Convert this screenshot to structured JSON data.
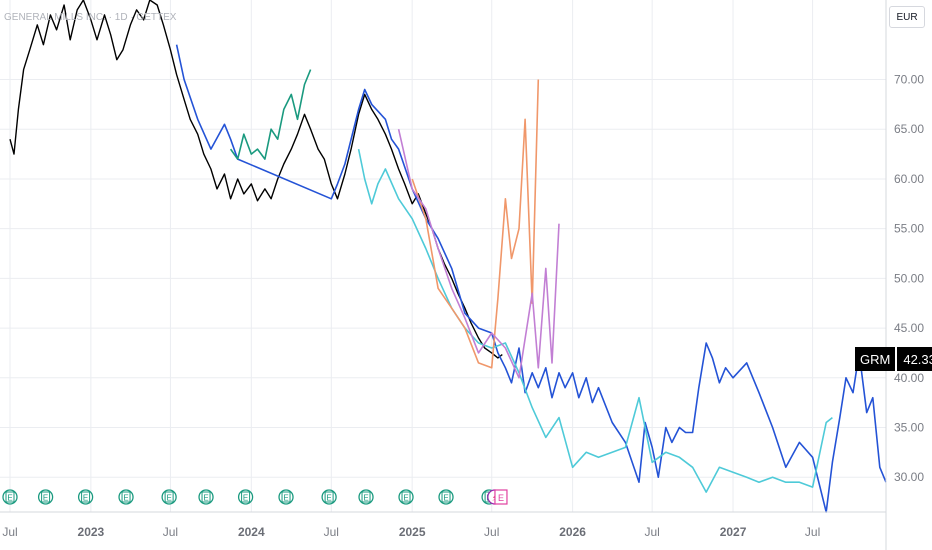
{
  "header": {
    "title": "GENERAL MILLS INC. · 1D · GETTEX"
  },
  "currency_button": {
    "label": "EUR"
  },
  "last_price": {
    "symbol": "GRM",
    "value": "42.33"
  },
  "colors": {
    "price": "#000000",
    "forecast_blue": "#2453d6",
    "forecast_cyan": "#4ecad8",
    "forecast_green": "#1a9a7f",
    "forecast_orange": "#f0976a",
    "forecast_purple": "#c27fd4",
    "grid": "#ebedf1",
    "earnings": "#1a9a7f",
    "split_dividend": "#9c27b0",
    "earnings_upcoming": "#e040a0"
  },
  "chart_data": {
    "type": "line",
    "title": "GENERAL MILLS INC. · 1D · GETTEX",
    "ylabel": "",
    "xlabel": "",
    "y_ticks": [
      30.0,
      35.0,
      40.0,
      45.0,
      50.0,
      55.0,
      60.0,
      65.0,
      70.0
    ],
    "y_tick_labels": [
      "30.00",
      "35.00",
      "40.00",
      "45.00",
      "50.00",
      "55.00",
      "60.00",
      "65.00",
      "70.00"
    ],
    "ylim": [
      26.5,
      78
    ],
    "xlim": [
      "2022-07-01",
      "2027-12-15"
    ],
    "x_ticks": [
      {
        "date": "2022-07-01",
        "label": "Jul",
        "year": false
      },
      {
        "date": "2023-01-01",
        "label": "2023",
        "year": true
      },
      {
        "date": "2023-07-01",
        "label": "Jul",
        "year": false
      },
      {
        "date": "2024-01-01",
        "label": "2024",
        "year": true
      },
      {
        "date": "2024-07-01",
        "label": "Jul",
        "year": false
      },
      {
        "date": "2025-01-01",
        "label": "2025",
        "year": true
      },
      {
        "date": "2025-07-01",
        "label": "Jul",
        "year": false
      },
      {
        "date": "2026-01-01",
        "label": "2026",
        "year": true
      },
      {
        "date": "2026-07-01",
        "label": "Jul",
        "year": false
      },
      {
        "date": "2027-01-01",
        "label": "2027",
        "year": true
      },
      {
        "date": "2027-07-01",
        "label": "Jul",
        "year": false
      }
    ],
    "grid": true,
    "series": [
      {
        "color": "#000000",
        "points": [
          [
            "2022-07-01",
            64.0
          ],
          [
            "2022-07-10",
            62.5
          ],
          [
            "2022-07-20",
            67.0
          ],
          [
            "2022-08-01",
            71.0
          ],
          [
            "2022-08-15",
            73.0
          ],
          [
            "2022-09-01",
            75.5
          ],
          [
            "2022-09-15",
            73.5
          ],
          [
            "2022-10-01",
            76.5
          ],
          [
            "2022-10-15",
            75.0
          ],
          [
            "2022-11-01",
            77.5
          ],
          [
            "2022-11-15",
            74.0
          ],
          [
            "2022-12-01",
            77.0
          ],
          [
            "2022-12-15",
            78.0
          ],
          [
            "2023-01-01",
            76.0
          ],
          [
            "2023-01-15",
            74.0
          ],
          [
            "2023-02-01",
            76.5
          ],
          [
            "2023-02-15",
            74.5
          ],
          [
            "2023-03-01",
            72.0
          ],
          [
            "2023-03-15",
            73.0
          ],
          [
            "2023-04-01",
            75.5
          ],
          [
            "2023-04-15",
            77.0
          ],
          [
            "2023-05-01",
            76.0
          ],
          [
            "2023-05-15",
            78.0
          ],
          [
            "2023-06-01",
            77.5
          ],
          [
            "2023-06-15",
            75.5
          ],
          [
            "2023-07-01",
            73.0
          ],
          [
            "2023-07-15",
            70.5
          ],
          [
            "2023-08-01",
            68.0
          ],
          [
            "2023-08-15",
            66.0
          ],
          [
            "2023-09-01",
            64.5
          ],
          [
            "2023-09-15",
            62.5
          ],
          [
            "2023-10-01",
            61.0
          ],
          [
            "2023-10-15",
            59.0
          ],
          [
            "2023-11-01",
            60.5
          ],
          [
            "2023-11-15",
            58.0
          ],
          [
            "2023-12-01",
            60.0
          ],
          [
            "2023-12-15",
            58.5
          ],
          [
            "2024-01-01",
            59.5
          ],
          [
            "2024-01-15",
            57.8
          ],
          [
            "2024-02-01",
            59.0
          ],
          [
            "2024-02-15",
            58.0
          ],
          [
            "2024-03-01",
            60.0
          ],
          [
            "2024-03-15",
            61.5
          ],
          [
            "2024-04-01",
            63.0
          ],
          [
            "2024-04-15",
            64.5
          ],
          [
            "2024-05-01",
            66.5
          ],
          [
            "2024-05-15",
            65.0
          ],
          [
            "2024-06-01",
            63.0
          ],
          [
            "2024-06-15",
            62.0
          ],
          [
            "2024-07-01",
            59.5
          ],
          [
            "2024-07-15",
            58.0
          ],
          [
            "2024-08-01",
            60.5
          ],
          [
            "2024-08-15",
            63.0
          ],
          [
            "2024-09-01",
            66.5
          ],
          [
            "2024-09-15",
            68.5
          ],
          [
            "2024-10-01",
            67.0
          ],
          [
            "2024-10-15",
            66.0
          ],
          [
            "2024-11-01",
            64.5
          ],
          [
            "2024-11-15",
            63.0
          ],
          [
            "2024-12-01",
            61.0
          ],
          [
            "2024-12-15",
            59.5
          ],
          [
            "2025-01-01",
            57.5
          ],
          [
            "2025-01-15",
            58.5
          ],
          [
            "2025-02-01",
            56.5
          ],
          [
            "2025-02-15",
            55.0
          ],
          [
            "2025-03-01",
            53.0
          ],
          [
            "2025-03-15",
            51.5
          ],
          [
            "2025-04-01",
            50.0
          ],
          [
            "2025-04-15",
            48.5
          ],
          [
            "2025-05-01",
            47.0
          ],
          [
            "2025-05-15",
            45.5
          ],
          [
            "2025-06-01",
            44.0
          ],
          [
            "2025-06-15",
            43.0
          ],
          [
            "2025-07-01",
            42.5
          ],
          [
            "2025-07-15",
            42.0
          ],
          [
            "2025-07-25",
            42.33
          ]
        ]
      },
      {
        "color": "#2453d6",
        "points": [
          [
            "2023-07-15",
            73.5
          ],
          [
            "2023-08-01",
            70.0
          ],
          [
            "2023-09-01",
            66.0
          ],
          [
            "2023-10-01",
            63.0
          ],
          [
            "2023-11-01",
            65.5
          ],
          [
            "2023-11-15",
            64.0
          ],
          [
            "2023-12-01",
            62.0
          ],
          [
            "2024-07-01",
            58.0
          ],
          [
            "2024-07-15",
            59.5
          ],
          [
            "2024-08-01",
            61.5
          ],
          [
            "2024-09-01",
            67.0
          ],
          [
            "2024-09-15",
            69.0
          ],
          [
            "2024-10-01",
            67.5
          ],
          [
            "2024-11-01",
            66.0
          ],
          [
            "2024-11-15",
            64.0
          ],
          [
            "2024-12-01",
            63.0
          ],
          [
            "2025-01-01",
            59.0
          ],
          [
            "2025-02-01",
            56.0
          ],
          [
            "2025-03-01",
            54.0
          ],
          [
            "2025-04-01",
            51.0
          ],
          [
            "2025-05-01",
            46.5
          ],
          [
            "2025-06-01",
            45.0
          ],
          [
            "2025-07-01",
            44.5
          ],
          [
            "2025-07-15",
            42.5
          ],
          [
            "2025-08-01",
            41.0
          ],
          [
            "2025-08-15",
            39.5
          ],
          [
            "2025-09-01",
            43.0
          ],
          [
            "2025-09-15",
            38.5
          ],
          [
            "2025-10-01",
            40.5
          ],
          [
            "2025-10-15",
            39.0
          ],
          [
            "2025-11-01",
            41.0
          ],
          [
            "2025-11-15",
            38.0
          ],
          [
            "2025-12-01",
            40.5
          ],
          [
            "2025-12-15",
            39.0
          ],
          [
            "2026-01-01",
            40.5
          ],
          [
            "2026-01-15",
            38.0
          ],
          [
            "2026-02-01",
            40.0
          ],
          [
            "2026-02-15",
            37.5
          ],
          [
            "2026-03-01",
            39.0
          ],
          [
            "2026-04-01",
            35.5
          ],
          [
            "2026-05-01",
            33.5
          ],
          [
            "2026-06-01",
            29.5
          ],
          [
            "2026-06-15",
            35.5
          ],
          [
            "2026-07-01",
            33.0
          ],
          [
            "2026-07-15",
            30.0
          ],
          [
            "2026-08-01",
            35.0
          ],
          [
            "2026-08-15",
            33.5
          ],
          [
            "2026-09-01",
            35.0
          ],
          [
            "2026-09-15",
            34.5
          ],
          [
            "2026-10-01",
            34.5
          ],
          [
            "2026-10-15",
            39.0
          ],
          [
            "2026-11-01",
            43.5
          ],
          [
            "2026-11-15",
            42.0
          ],
          [
            "2026-12-01",
            39.5
          ],
          [
            "2026-12-15",
            41.0
          ],
          [
            "2027-01-01",
            40.0
          ],
          [
            "2027-02-01",
            41.5
          ],
          [
            "2027-03-01",
            38.5
          ],
          [
            "2027-04-01",
            35.0
          ],
          [
            "2027-05-01",
            31.0
          ],
          [
            "2027-06-01",
            33.5
          ],
          [
            "2027-07-01",
            32.0
          ],
          [
            "2027-08-01",
            26.5
          ],
          [
            "2027-08-15",
            31.5
          ],
          [
            "2027-09-01",
            36.0
          ],
          [
            "2027-09-15",
            40.0
          ],
          [
            "2027-10-01",
            38.5
          ],
          [
            "2027-10-15",
            42.5
          ],
          [
            "2027-11-01",
            36.5
          ],
          [
            "2027-11-15",
            38.0
          ],
          [
            "2027-12-01",
            31.0
          ],
          [
            "2027-12-15",
            29.5
          ]
        ]
      },
      {
        "color": "#4ecad8",
        "points": [
          [
            "2024-09-01",
            63.0
          ],
          [
            "2024-09-15",
            60.0
          ],
          [
            "2024-10-01",
            57.5
          ],
          [
            "2024-10-15",
            59.5
          ],
          [
            "2024-11-01",
            61.0
          ],
          [
            "2024-12-01",
            58.0
          ],
          [
            "2025-01-01",
            56.0
          ],
          [
            "2025-02-01",
            53.0
          ],
          [
            "2025-03-01",
            50.0
          ],
          [
            "2025-04-01",
            47.0
          ],
          [
            "2025-05-01",
            45.0
          ],
          [
            "2025-06-01",
            43.5
          ],
          [
            "2025-07-01",
            43.0
          ],
          [
            "2025-08-01",
            43.5
          ],
          [
            "2025-09-01",
            40.5
          ],
          [
            "2025-10-01",
            37.0
          ],
          [
            "2025-11-01",
            34.0
          ],
          [
            "2025-12-01",
            36.0
          ],
          [
            "2026-01-01",
            31.0
          ],
          [
            "2026-02-01",
            32.5
          ],
          [
            "2026-03-01",
            32.0
          ],
          [
            "2026-04-01",
            32.5
          ],
          [
            "2026-05-01",
            33.0
          ],
          [
            "2026-06-01",
            38.0
          ],
          [
            "2026-07-01",
            31.5
          ],
          [
            "2026-08-01",
            32.5
          ],
          [
            "2026-09-01",
            32.0
          ],
          [
            "2026-10-01",
            31.0
          ],
          [
            "2026-11-01",
            28.5
          ],
          [
            "2026-12-01",
            31.0
          ],
          [
            "2027-01-01",
            30.5
          ],
          [
            "2027-02-01",
            30.0
          ],
          [
            "2027-03-01",
            29.5
          ],
          [
            "2027-04-01",
            30.0
          ],
          [
            "2027-05-01",
            29.5
          ],
          [
            "2027-06-01",
            29.5
          ],
          [
            "2027-07-01",
            29.0
          ],
          [
            "2027-08-01",
            35.5
          ],
          [
            "2027-08-15",
            36.0
          ]
        ]
      },
      {
        "color": "#1a9a7f",
        "points": [
          [
            "2023-11-15",
            63.0
          ],
          [
            "2023-12-01",
            62.0
          ],
          [
            "2023-12-15",
            64.5
          ],
          [
            "2024-01-01",
            62.5
          ],
          [
            "2024-01-15",
            63.0
          ],
          [
            "2024-02-01",
            62.0
          ],
          [
            "2024-02-15",
            65.0
          ],
          [
            "2024-03-01",
            64.0
          ],
          [
            "2024-03-15",
            67.0
          ],
          [
            "2024-04-01",
            68.5
          ],
          [
            "2024-04-15",
            66.0
          ],
          [
            "2024-05-01",
            69.5
          ],
          [
            "2024-05-15",
            71.0
          ]
        ]
      },
      {
        "color": "#f0976a",
        "points": [
          [
            "2025-01-01",
            60.0
          ],
          [
            "2025-02-01",
            56.0
          ],
          [
            "2025-03-01",
            49.0
          ],
          [
            "2025-04-01",
            47.0
          ],
          [
            "2025-05-01",
            45.0
          ],
          [
            "2025-06-01",
            41.5
          ],
          [
            "2025-07-01",
            41.0
          ],
          [
            "2025-07-15",
            48.0
          ],
          [
            "2025-08-01",
            58.0
          ],
          [
            "2025-08-15",
            52.0
          ],
          [
            "2025-09-01",
            55.0
          ],
          [
            "2025-09-15",
            66.0
          ],
          [
            "2025-10-01",
            47.5
          ],
          [
            "2025-10-15",
            70.0
          ]
        ]
      },
      {
        "color": "#c27fd4",
        "points": [
          [
            "2024-12-01",
            65.0
          ],
          [
            "2025-01-01",
            59.0
          ],
          [
            "2025-02-01",
            57.0
          ],
          [
            "2025-03-01",
            53.0
          ],
          [
            "2025-04-01",
            49.0
          ],
          [
            "2025-05-01",
            46.0
          ],
          [
            "2025-06-01",
            42.5
          ],
          [
            "2025-07-01",
            44.5
          ],
          [
            "2025-08-01",
            43.0
          ],
          [
            "2025-09-01",
            40.0
          ],
          [
            "2025-10-01",
            48.5
          ],
          [
            "2025-10-15",
            41.0
          ],
          [
            "2025-11-01",
            51.0
          ],
          [
            "2025-11-15",
            41.5
          ],
          [
            "2025-12-01",
            55.5
          ]
        ]
      }
    ],
    "markers": {
      "earnings_dates": [
        "2022-07-01",
        "2022-09-20",
        "2022-12-20",
        "2023-03-22",
        "2023-06-28",
        "2023-09-20",
        "2023-12-19",
        "2024-03-20",
        "2024-06-26",
        "2024-09-18",
        "2024-12-18",
        "2025-03-19",
        "2025-06-25"
      ],
      "earnings_label": "E",
      "split_date": "2025-07-08",
      "split_label": "⚡",
      "upcoming_earnings_date": "2025-07-22",
      "upcoming_label": "E"
    }
  }
}
